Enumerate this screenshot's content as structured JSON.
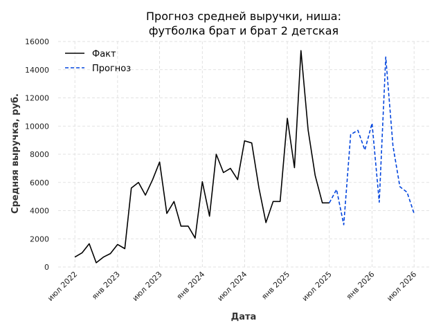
{
  "chart_data": {
    "type": "line",
    "title_lines": [
      "Прогноз средней выручки, ниша:",
      "футболка брат и брат 2 детская"
    ],
    "xlabel": "Дата",
    "ylabel": "Средняя выручка, руб.",
    "ylim": [
      0,
      16000
    ],
    "yticks": [
      0,
      2000,
      4000,
      6000,
      8000,
      10000,
      12000,
      14000,
      16000
    ],
    "xlim": [
      "2022-04-20",
      "2026-09-10"
    ],
    "xticks": [
      {
        "date": "2022-07-01",
        "label": "июл 2022"
      },
      {
        "date": "2023-01-01",
        "label": "янв 2023"
      },
      {
        "date": "2023-07-01",
        "label": "июл 2023"
      },
      {
        "date": "2024-01-01",
        "label": "янв 2024"
      },
      {
        "date": "2024-07-01",
        "label": "июл 2024"
      },
      {
        "date": "2025-01-01",
        "label": "янв 2025"
      },
      {
        "date": "2025-07-01",
        "label": "июл 2025"
      },
      {
        "date": "2026-01-01",
        "label": "янв 2026"
      },
      {
        "date": "2026-07-01",
        "label": "июл 2026"
      }
    ],
    "grid": true,
    "legend_position": "top-left",
    "series": [
      {
        "name": "Факт",
        "color": "#000000",
        "style": "solid",
        "points": [
          [
            "2022-07-01",
            700
          ],
          [
            "2022-08-01",
            1000
          ],
          [
            "2022-09-01",
            1650
          ],
          [
            "2022-10-01",
            300
          ],
          [
            "2022-11-01",
            700
          ],
          [
            "2022-12-01",
            950
          ],
          [
            "2023-01-01",
            1600
          ],
          [
            "2023-02-01",
            1300
          ],
          [
            "2023-03-01",
            5600
          ],
          [
            "2023-04-01",
            6000
          ],
          [
            "2023-05-01",
            5100
          ],
          [
            "2023-06-01",
            6200
          ],
          [
            "2023-07-01",
            7450
          ],
          [
            "2023-08-01",
            3800
          ],
          [
            "2023-09-01",
            4650
          ],
          [
            "2023-10-01",
            2900
          ],
          [
            "2023-11-01",
            2900
          ],
          [
            "2023-12-01",
            2050
          ],
          [
            "2024-01-01",
            6050
          ],
          [
            "2024-02-01",
            3600
          ],
          [
            "2024-03-01",
            8000
          ],
          [
            "2024-04-01",
            6700
          ],
          [
            "2024-05-01",
            7000
          ],
          [
            "2024-06-01",
            6200
          ],
          [
            "2024-07-01",
            8950
          ],
          [
            "2024-08-01",
            8800
          ],
          [
            "2024-09-01",
            5600
          ],
          [
            "2024-10-01",
            3150
          ],
          [
            "2024-11-01",
            4650
          ],
          [
            "2024-12-01",
            4650
          ],
          [
            "2025-01-01",
            10550
          ],
          [
            "2025-02-01",
            7050
          ],
          [
            "2025-03-01",
            15350
          ],
          [
            "2025-04-01",
            9700
          ],
          [
            "2025-05-01",
            6500
          ],
          [
            "2025-06-01",
            4550
          ],
          [
            "2025-07-01",
            4550
          ]
        ]
      },
      {
        "name": "Прогноз",
        "color": "#0044dd",
        "style": "dashed",
        "points": [
          [
            "2025-07-01",
            4550
          ],
          [
            "2025-08-01",
            5500
          ],
          [
            "2025-09-01",
            3000
          ],
          [
            "2025-10-01",
            9400
          ],
          [
            "2025-11-01",
            9700
          ],
          [
            "2025-12-01",
            8300
          ],
          [
            "2026-01-01",
            10200
          ],
          [
            "2026-02-01",
            4600
          ],
          [
            "2026-03-01",
            14900
          ],
          [
            "2026-04-01",
            8600
          ],
          [
            "2026-05-01",
            5700
          ],
          [
            "2026-06-01",
            5300
          ],
          [
            "2026-07-01",
            3800
          ]
        ]
      }
    ]
  }
}
